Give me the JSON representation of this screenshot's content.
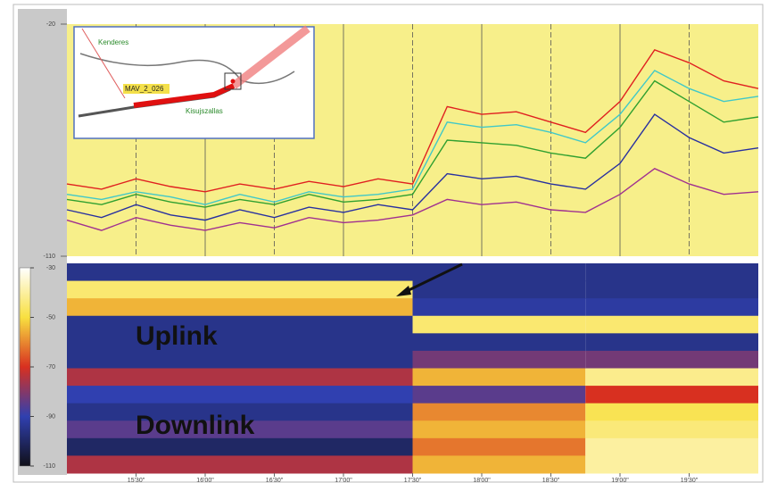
{
  "chart_data": [
    {
      "type": "line",
      "x": [
        0,
        15,
        30,
        45,
        60,
        75,
        90,
        105,
        120,
        135,
        150,
        165,
        180,
        195,
        210,
        225,
        240,
        255,
        270,
        285,
        300
      ],
      "xlim": [
        0,
        300
      ],
      "xticks": [
        {
          "value": 30,
          "label": "15'30\""
        },
        {
          "value": 60,
          "label": "16'00\""
        },
        {
          "value": 90,
          "label": "16'30\""
        },
        {
          "value": 120,
          "label": "17'00\""
        },
        {
          "value": 150,
          "label": "17'30\""
        },
        {
          "value": 180,
          "label": "18'00\""
        },
        {
          "value": 210,
          "label": "18'30\""
        },
        {
          "value": 240,
          "label": "19'00\""
        },
        {
          "value": 270,
          "label": "19'30\""
        }
      ],
      "ylim": [
        -110,
        -20
      ],
      "yticks": [
        -20,
        -110
      ],
      "grid": true,
      "series": [
        {
          "color": "#e02020",
          "values": [
            -82,
            -84,
            -80,
            -83,
            -85,
            -82,
            -84,
            -81,
            -83,
            -80,
            -82,
            -52,
            -55,
            -54,
            -58,
            -62,
            -50,
            -30,
            -35,
            -42,
            -45
          ]
        },
        {
          "color": "#30a030",
          "values": [
            -88,
            -90,
            -86,
            -89,
            -91,
            -88,
            -90,
            -86,
            -89,
            -88,
            -86,
            -65,
            -66,
            -67,
            -70,
            -72,
            -60,
            -42,
            -50,
            -58,
            -56
          ]
        },
        {
          "color": "#40c8c8",
          "values": [
            -86,
            -88,
            -85,
            -87,
            -90,
            -86,
            -89,
            -85,
            -87,
            -86,
            -84,
            -58,
            -60,
            -59,
            -62,
            -66,
            -55,
            -38,
            -45,
            -50,
            -48
          ]
        },
        {
          "color": "#2830a0",
          "values": [
            -92,
            -95,
            -90,
            -94,
            -96,
            -92,
            -95,
            -91,
            -93,
            -90,
            -92,
            -78,
            -80,
            -79,
            -82,
            -84,
            -74,
            -55,
            -64,
            -70,
            -68
          ]
        },
        {
          "color": "#a03090",
          "values": [
            -96,
            -100,
            -95,
            -98,
            -100,
            -97,
            -99,
            -95,
            -97,
            -96,
            -94,
            -88,
            -90,
            -89,
            -92,
            -93,
            -86,
            -76,
            -82,
            -86,
            -85
          ]
        }
      ]
    },
    {
      "type": "heatmap",
      "xbins": [
        0,
        150,
        225,
        300
      ],
      "zlim": [
        -110,
        -30
      ],
      "zticks": [
        -30,
        -50,
        -70,
        -90,
        -110
      ],
      "colors": [
        "#101018",
        "#3040b0",
        "#d83020",
        "#f8e040",
        "#ffffff"
      ],
      "values": [
        [
          -95,
          -95,
          -95
        ],
        [
          -45,
          -95,
          -95
        ],
        [
          -55,
          -92,
          -92
        ],
        [
          -95,
          -45,
          -45
        ],
        [
          -95,
          -95,
          -95
        ],
        [
          -95,
          -82,
          -82
        ],
        [
          -75,
          -55,
          -42
        ],
        [
          -90,
          -85,
          -70
        ],
        [
          -95,
          -60,
          -48
        ],
        [
          -85,
          -55,
          -44
        ],
        [
          -100,
          -62,
          -40
        ],
        [
          -75,
          -55,
          -40
        ]
      ],
      "annotations": [
        "Uplink",
        "Downlink"
      ]
    }
  ],
  "inset_map": {
    "labels": [
      "Kenderes",
      "MAV_2_026",
      "Kisujszallas"
    ]
  }
}
